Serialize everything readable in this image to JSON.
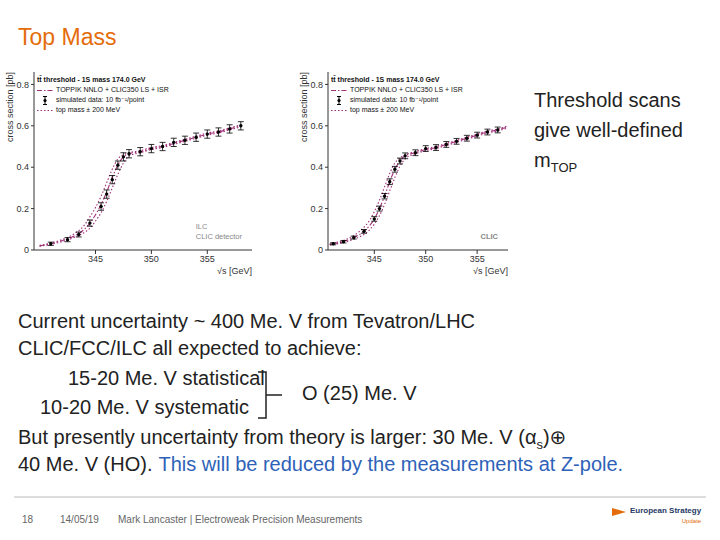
{
  "title": "Top Mass",
  "chart_data": [
    {
      "type": "line",
      "title": "tt̄ threshold - 1S mass 174.0 GeV",
      "x_label": "√s [GeV]",
      "y_label": "cross section [pb]",
      "xlim": [
        339.5,
        359
      ],
      "xticks": [
        345,
        350,
        355
      ],
      "ylim": [
        0,
        0.86
      ],
      "yticks": [
        0,
        0.2,
        0.4,
        0.6,
        0.8
      ],
      "annotations": [
        "ILC",
        "CLIC detector"
      ],
      "x": [
        340,
        341,
        342,
        343,
        344,
        344.5,
        345,
        345.5,
        346,
        346.5,
        347,
        347.5,
        348,
        349,
        350,
        351,
        352,
        353,
        354,
        355,
        356,
        357,
        358
      ],
      "series": [
        {
          "name": "TOPPIK NNLO + CLIC350 LS + ISR",
          "type": "line",
          "line_style": "dashdot",
          "color": "#a0307a",
          "values": [
            0.02,
            0.03,
            0.045,
            0.065,
            0.1,
            0.13,
            0.17,
            0.22,
            0.28,
            0.35,
            0.41,
            0.45,
            0.465,
            0.475,
            0.49,
            0.5,
            0.515,
            0.53,
            0.545,
            0.56,
            0.57,
            0.585,
            0.6
          ]
        },
        {
          "name": "simulated data: 10 fb⁻¹/point",
          "type": "scatter",
          "marker": "circle",
          "color": "#000000",
          "x": [
            341,
            342.5,
            343.5,
            344.5,
            345.5,
            346,
            346.5,
            347,
            347.5,
            348,
            349,
            350,
            351,
            352,
            353,
            354,
            355,
            356,
            357,
            358
          ],
          "values": [
            0.03,
            0.05,
            0.075,
            0.13,
            0.21,
            0.27,
            0.34,
            0.41,
            0.45,
            0.465,
            0.475,
            0.49,
            0.5,
            0.52,
            0.53,
            0.545,
            0.56,
            0.57,
            0.585,
            0.6
          ],
          "errors": [
            0.008,
            0.01,
            0.012,
            0.015,
            0.018,
            0.02,
            0.02,
            0.02,
            0.02,
            0.02,
            0.02,
            0.02,
            0.02,
            0.02,
            0.02,
            0.02,
            0.02,
            0.02,
            0.02,
            0.02
          ]
        },
        {
          "name": "top mass ± 200 MeV",
          "type": "line",
          "line_style": "dotted",
          "color": "#a0307a",
          "values_minus": [
            0.022,
            0.034,
            0.05,
            0.075,
            0.12,
            0.16,
            0.205,
            0.26,
            0.325,
            0.39,
            0.44,
            0.46,
            0.47,
            0.48,
            0.495,
            0.505,
            0.52,
            0.535,
            0.55,
            0.565,
            0.575,
            0.59,
            0.605
          ],
          "values_plus": [
            0.018,
            0.027,
            0.04,
            0.058,
            0.085,
            0.105,
            0.14,
            0.18,
            0.235,
            0.3,
            0.365,
            0.42,
            0.455,
            0.47,
            0.485,
            0.495,
            0.51,
            0.525,
            0.54,
            0.555,
            0.565,
            0.58,
            0.595
          ]
        }
      ]
    },
    {
      "type": "line",
      "title": "tt̄ threshold - 1S mass 174.0 GeV",
      "x_label": "√s [GeV]",
      "y_label": "cross section [pb]",
      "xlim": [
        340.5,
        358
      ],
      "xticks": [
        345,
        350,
        355
      ],
      "ylim": [
        0,
        0.86
      ],
      "yticks": [
        0,
        0.2,
        0.4,
        0.6,
        0.8
      ],
      "annotations": [
        "CLIC"
      ],
      "x": [
        340,
        341,
        342,
        343,
        344,
        344.5,
        345,
        345.5,
        346,
        346.5,
        347,
        347.5,
        348,
        349,
        350,
        351,
        352,
        353,
        354,
        355,
        356,
        357,
        358
      ],
      "series": [
        {
          "name": "TOPPIK NNLO + CLIC350 LS + ISR",
          "type": "line",
          "line_style": "dashdot",
          "color": "#a0307a",
          "values": [
            0.02,
            0.03,
            0.04,
            0.06,
            0.09,
            0.115,
            0.15,
            0.2,
            0.26,
            0.33,
            0.39,
            0.43,
            0.455,
            0.47,
            0.485,
            0.495,
            0.51,
            0.525,
            0.54,
            0.555,
            0.57,
            0.58,
            0.595
          ]
        },
        {
          "name": "simulated data: 10 fb⁻¹/point",
          "type": "scatter",
          "marker": "circle",
          "color": "#000000",
          "x": [
            341,
            342,
            343,
            344,
            345,
            345.5,
            346,
            346.5,
            347,
            347.5,
            348,
            349,
            350,
            351,
            352,
            353,
            354,
            355,
            356,
            357
          ],
          "values": [
            0.03,
            0.04,
            0.06,
            0.09,
            0.15,
            0.2,
            0.26,
            0.33,
            0.39,
            0.43,
            0.455,
            0.47,
            0.49,
            0.495,
            0.51,
            0.525,
            0.54,
            0.555,
            0.57,
            0.58
          ],
          "errors": [
            0.005,
            0.006,
            0.007,
            0.009,
            0.011,
            0.012,
            0.013,
            0.014,
            0.014,
            0.014,
            0.014,
            0.014,
            0.014,
            0.014,
            0.014,
            0.014,
            0.014,
            0.014,
            0.014,
            0.014
          ]
        },
        {
          "name": "top mass ± 200 MeV",
          "type": "line",
          "line_style": "dotted",
          "color": "#a0307a",
          "values_minus": [
            0.022,
            0.033,
            0.046,
            0.07,
            0.11,
            0.14,
            0.185,
            0.24,
            0.305,
            0.37,
            0.42,
            0.445,
            0.46,
            0.475,
            0.49,
            0.5,
            0.515,
            0.53,
            0.545,
            0.56,
            0.575,
            0.585,
            0.6
          ],
          "values_plus": [
            0.018,
            0.027,
            0.036,
            0.052,
            0.075,
            0.095,
            0.125,
            0.165,
            0.22,
            0.285,
            0.35,
            0.405,
            0.44,
            0.465,
            0.48,
            0.49,
            0.505,
            0.52,
            0.535,
            0.55,
            0.565,
            0.575,
            0.59
          ]
        }
      ]
    }
  ],
  "side_note": {
    "lines": [
      "Threshold scans",
      "give well-defined"
    ],
    "symbol": "m",
    "subscript": "TOP"
  },
  "body": {
    "lines": [
      "Current uncertainty ~ 400 Me. V from Tevatron/LHC",
      "CLIC/FCC/ILC all expected to achieve:"
    ],
    "statistical": "15-20 Me. V statistical",
    "systematic": "10-20 Me. V systematic",
    "combined": "O (25) Me. V",
    "theory": [
      "But presently uncertainty from theory is larger: 30 Me. V (α",
      "s",
      ")⊕"
    ],
    "theory2": "40 Me. V (HO).",
    "outlook": "This will be reduced by the measurements at Z-pole."
  },
  "footer": {
    "page": "18",
    "date": "14/05/19",
    "author": "Mark Lancaster | Electroweak Precision Measurements",
    "logo": [
      "European Strategy",
      "Update"
    ]
  }
}
